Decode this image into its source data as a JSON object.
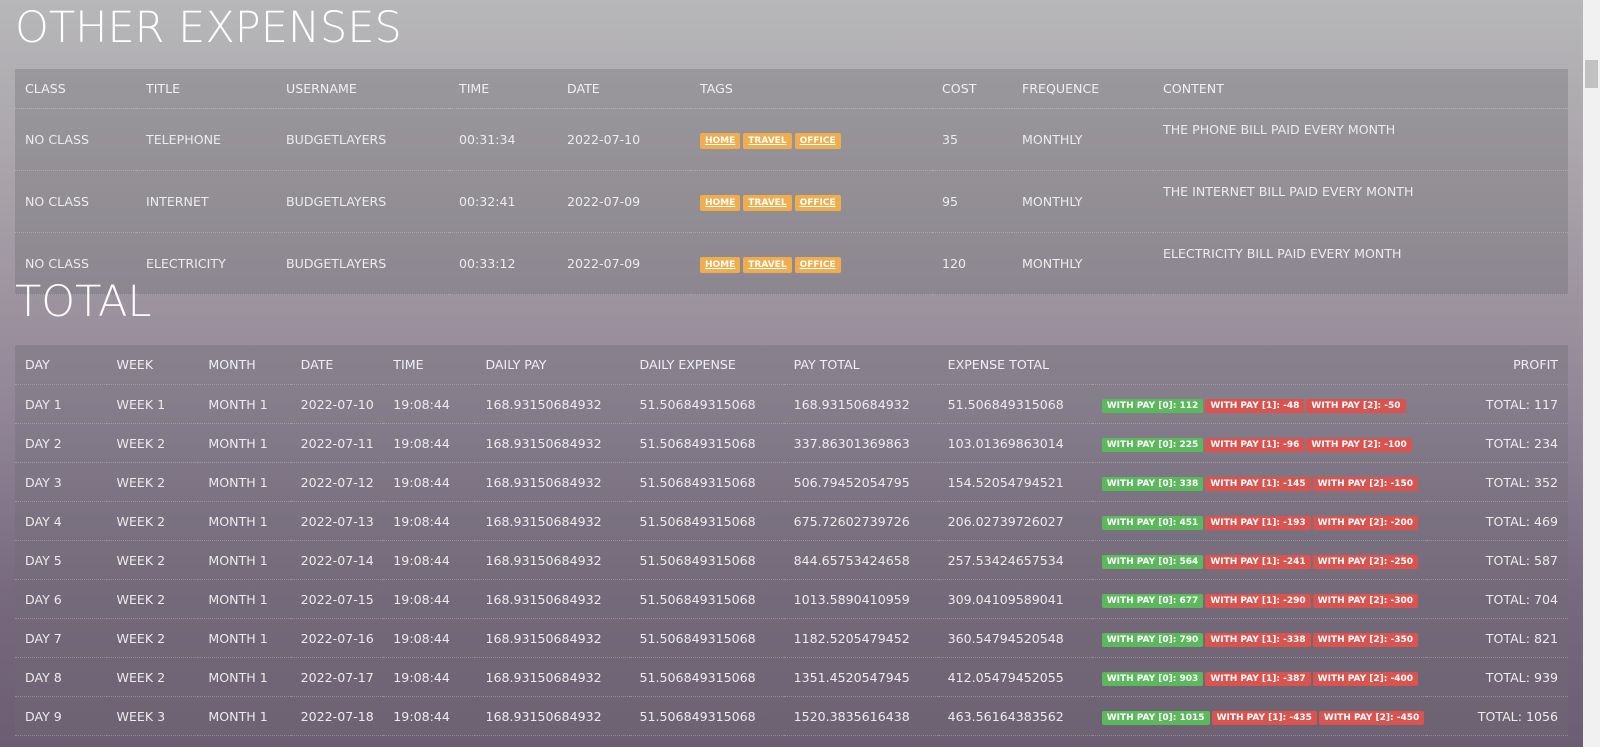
{
  "expenses": {
    "title": "OTHER EXPENSES",
    "headers": [
      "CLASS",
      "TITLE",
      "USERNAME",
      "TIME",
      "DATE",
      "TAGS",
      "COST",
      "FREQUENCE",
      "CONTENT"
    ],
    "rows": [
      {
        "class": "NO CLASS",
        "title": "TELEPHONE",
        "username": "BUDGETLAYERS",
        "time": "00:31:34",
        "date": "2022-07-10",
        "tags": [
          "HOME",
          "TRAVEL",
          "OFFICE"
        ],
        "cost": "35",
        "frequence": "MONTHLY",
        "content": "THE PHONE BILL PAID EVERY MONTH"
      },
      {
        "class": "NO CLASS",
        "title": "INTERNET",
        "username": "BUDGETLAYERS",
        "time": "00:32:41",
        "date": "2022-07-09",
        "tags": [
          "HOME",
          "TRAVEL",
          "OFFICE"
        ],
        "cost": "95",
        "frequence": "MONTHLY",
        "content": "THE INTERNET BILL PAID EVERY MONTH"
      },
      {
        "class": "NO CLASS",
        "title": "ELECTRICITY",
        "username": "BUDGETLAYERS",
        "time": "00:33:12",
        "date": "2022-07-09",
        "tags": [
          "HOME",
          "TRAVEL",
          "OFFICE"
        ],
        "cost": "120",
        "frequence": "MONTHLY",
        "content": "ELECTRICITY BILL PAID EVERY MONTH"
      }
    ]
  },
  "total": {
    "title": "TOTAL",
    "headers": [
      "DAY",
      "WEEK",
      "MONTH",
      "DATE",
      "TIME",
      "DAILY PAY",
      "DAILY EXPENSE",
      "PAY TOTAL",
      "EXPENSE TOTAL",
      "",
      "PROFIT"
    ],
    "rows": [
      {
        "day": "DAY 1",
        "week": "WEEK 1",
        "month": "MONTH 1",
        "date": "2022-07-10",
        "time": "19:08:44",
        "daily_pay": "168.93150684932",
        "daily_expense": "51.506849315068",
        "pay_total": "168.93150684932",
        "expense_total": "51.506849315068",
        "badges": [
          "WITH PAY [0]: 112",
          "WITH PAY [1]: -48",
          "WITH PAY [2]: -50"
        ],
        "profit": "TOTAL: 117"
      },
      {
        "day": "DAY 2",
        "week": "WEEK 2",
        "month": "MONTH 1",
        "date": "2022-07-11",
        "time": "19:08:44",
        "daily_pay": "168.93150684932",
        "daily_expense": "51.506849315068",
        "pay_total": "337.86301369863",
        "expense_total": "103.01369863014",
        "badges": [
          "WITH PAY [0]: 225",
          "WITH PAY [1]: -96",
          "WITH PAY [2]: -100"
        ],
        "profit": "TOTAL: 234"
      },
      {
        "day": "DAY 3",
        "week": "WEEK 2",
        "month": "MONTH 1",
        "date": "2022-07-12",
        "time": "19:08:44",
        "daily_pay": "168.93150684932",
        "daily_expense": "51.506849315068",
        "pay_total": "506.79452054795",
        "expense_total": "154.52054794521",
        "badges": [
          "WITH PAY [0]: 338",
          "WITH PAY [1]: -145",
          "WITH PAY [2]: -150"
        ],
        "profit": "TOTAL: 352"
      },
      {
        "day": "DAY 4",
        "week": "WEEK 2",
        "month": "MONTH 1",
        "date": "2022-07-13",
        "time": "19:08:44",
        "daily_pay": "168.93150684932",
        "daily_expense": "51.506849315068",
        "pay_total": "675.72602739726",
        "expense_total": "206.02739726027",
        "badges": [
          "WITH PAY [0]: 451",
          "WITH PAY [1]: -193",
          "WITH PAY [2]: -200"
        ],
        "profit": "TOTAL: 469"
      },
      {
        "day": "DAY 5",
        "week": "WEEK 2",
        "month": "MONTH 1",
        "date": "2022-07-14",
        "time": "19:08:44",
        "daily_pay": "168.93150684932",
        "daily_expense": "51.506849315068",
        "pay_total": "844.65753424658",
        "expense_total": "257.53424657534",
        "badges": [
          "WITH PAY [0]: 564",
          "WITH PAY [1]: -241",
          "WITH PAY [2]: -250"
        ],
        "profit": "TOTAL: 587"
      },
      {
        "day": "DAY 6",
        "week": "WEEK 2",
        "month": "MONTH 1",
        "date": "2022-07-15",
        "time": "19:08:44",
        "daily_pay": "168.93150684932",
        "daily_expense": "51.506849315068",
        "pay_total": "1013.5890410959",
        "expense_total": "309.04109589041",
        "badges": [
          "WITH PAY [0]: 677",
          "WITH PAY [1]: -290",
          "WITH PAY [2]: -300"
        ],
        "profit": "TOTAL: 704"
      },
      {
        "day": "DAY 7",
        "week": "WEEK 2",
        "month": "MONTH 1",
        "date": "2022-07-16",
        "time": "19:08:44",
        "daily_pay": "168.93150684932",
        "daily_expense": "51.506849315068",
        "pay_total": "1182.5205479452",
        "expense_total": "360.54794520548",
        "badges": [
          "WITH PAY [0]: 790",
          "WITH PAY [1]: -338",
          "WITH PAY [2]: -350"
        ],
        "profit": "TOTAL: 821"
      },
      {
        "day": "DAY 8",
        "week": "WEEK 2",
        "month": "MONTH 1",
        "date": "2022-07-17",
        "time": "19:08:44",
        "daily_pay": "168.93150684932",
        "daily_expense": "51.506849315068",
        "pay_total": "1351.4520547945",
        "expense_total": "412.05479452055",
        "badges": [
          "WITH PAY [0]: 903",
          "WITH PAY [1]: -387",
          "WITH PAY [2]: -400"
        ],
        "profit": "TOTAL: 939"
      },
      {
        "day": "DAY 9",
        "week": "WEEK 3",
        "month": "MONTH 1",
        "date": "2022-07-18",
        "time": "19:08:44",
        "daily_pay": "168.93150684932",
        "daily_expense": "51.506849315068",
        "pay_total": "1520.3835616438",
        "expense_total": "463.56164383562",
        "badges": [
          "WITH PAY [0]: 1015",
          "WITH PAY [1]: -435",
          "WITH PAY [2]: -450"
        ],
        "profit": "TOTAL: 1056"
      }
    ]
  },
  "colors": {
    "tag": "#f0ad4e",
    "badge_positive": "#5cb85c",
    "badge_negative": "#d9534f"
  }
}
